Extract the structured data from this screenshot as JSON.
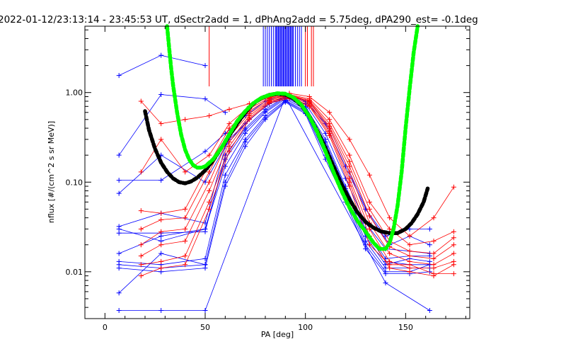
{
  "chart_data": {
    "type": "line",
    "title": "2022-01-12/23:13:14 - 23:45:53 UT, dSectr2add = 1, dPhAng2add = 5.75deg, dPA290_est=  -0.1deg",
    "xlabel": "PA [deg]",
    "ylabel": "nflux [#/(cm^2 s sr MeV)]",
    "xlim": [
      -10,
      182
    ],
    "ylim": [
      0.003,
      5.5
    ],
    "yscale": "log",
    "x_ticks": [
      0,
      50,
      100,
      150
    ],
    "x_tick_labels": [
      "0",
      "50",
      "100",
      "150"
    ],
    "y_ticks": [
      0.01,
      0.1,
      1.0
    ],
    "y_tick_labels": [
      "0.01",
      "0.10",
      "1.00"
    ],
    "grid": false,
    "colors": {
      "measured_sector_a": "#ff0000",
      "measured_sector_b": "#0000ff",
      "fit_black": "#000000",
      "fit_green": "#00ff00",
      "axes": "#000000"
    },
    "vertical_markers": [
      {
        "color": "#0000ff",
        "x": [
          79,
          80,
          81,
          82,
          83,
          84,
          85,
          85.5,
          86,
          86.5,
          87,
          87.5,
          88,
          88.5,
          89,
          89.5,
          90,
          90.5,
          91,
          91.5,
          92,
          92.5,
          93,
          93.5,
          94,
          95,
          96,
          97,
          98
        ]
      },
      {
        "color": "#ff0000",
        "x": [
          52,
          100,
          101,
          103,
          104
        ]
      }
    ],
    "series": [
      {
        "color": "#000000",
        "style": "fit",
        "x": [
          20,
          22,
          25,
          28,
          31,
          34,
          37,
          40,
          43,
          46,
          50,
          54,
          58,
          62,
          66,
          70,
          74,
          78,
          82,
          86,
          90,
          94,
          98,
          102,
          106,
          110,
          114,
          118,
          122,
          126,
          130,
          134,
          138,
          142,
          146,
          150,
          153,
          156,
          159,
          161
        ],
        "y": [
          0.62,
          0.38,
          0.235,
          0.165,
          0.13,
          0.11,
          0.1,
          0.097,
          0.102,
          0.112,
          0.135,
          0.175,
          0.24,
          0.33,
          0.45,
          0.6,
          0.75,
          0.87,
          0.94,
          0.97,
          0.95,
          0.86,
          0.72,
          0.54,
          0.37,
          0.24,
          0.15,
          0.095,
          0.064,
          0.046,
          0.036,
          0.031,
          0.028,
          0.027,
          0.027,
          0.03,
          0.035,
          0.044,
          0.06,
          0.085
        ]
      },
      {
        "color": "#00ff00",
        "style": "fit",
        "x": [
          31,
          32,
          33,
          34,
          36,
          38,
          40,
          42,
          44,
          46,
          48,
          50,
          54,
          58,
          62,
          66,
          70,
          74,
          78,
          82,
          86,
          90,
          94,
          98,
          102,
          106,
          110,
          114,
          118,
          122,
          126,
          130,
          134,
          137,
          140,
          142,
          144,
          146,
          148,
          150,
          152,
          154,
          156
        ],
        "y": [
          5.5,
          3.2,
          1.9,
          1.2,
          0.6,
          0.34,
          0.23,
          0.18,
          0.155,
          0.145,
          0.145,
          0.15,
          0.18,
          0.24,
          0.34,
          0.48,
          0.62,
          0.76,
          0.87,
          0.94,
          0.98,
          0.97,
          0.88,
          0.73,
          0.54,
          0.36,
          0.22,
          0.13,
          0.08,
          0.052,
          0.037,
          0.028,
          0.021,
          0.018,
          0.018,
          0.021,
          0.03,
          0.055,
          0.13,
          0.4,
          1.1,
          2.8,
          5.5
        ]
      },
      {
        "color": "#0000ff",
        "style": "measured",
        "x": [
          7,
          28,
          50
        ],
        "y": [
          1.55,
          2.6,
          2.0
        ]
      },
      {
        "color": "#0000ff",
        "style": "measured",
        "x": [
          7,
          28,
          50,
          60
        ],
        "y": [
          0.2,
          0.95,
          0.85,
          0.6
        ]
      },
      {
        "color": "#0000ff",
        "style": "measured",
        "x": [
          7,
          28,
          50,
          60,
          70,
          80,
          90,
          100,
          110,
          120,
          130,
          140,
          152,
          162
        ],
        "y": [
          0.105,
          0.105,
          0.22,
          0.35,
          0.55,
          0.8,
          0.95,
          0.8,
          0.45,
          0.15,
          0.05,
          0.025,
          0.03,
          0.03
        ]
      },
      {
        "color": "#0000ff",
        "style": "measured",
        "x": [
          7,
          28,
          50,
          62,
          72,
          82,
          92,
          102,
          112,
          122,
          132,
          142,
          152,
          162
        ],
        "y": [
          0.075,
          0.2,
          0.1,
          0.3,
          0.5,
          0.75,
          0.93,
          0.78,
          0.4,
          0.13,
          0.042,
          0.02,
          0.025,
          0.02
        ]
      },
      {
        "color": "#0000ff",
        "style": "measured",
        "x": [
          7,
          28,
          50,
          60,
          70,
          80,
          90,
          100,
          110,
          120,
          130,
          140,
          152,
          162
        ],
        "y": [
          0.032,
          0.045,
          0.035,
          0.25,
          0.45,
          0.7,
          0.92,
          0.75,
          0.35,
          0.11,
          0.035,
          0.018,
          0.017,
          0.016
        ]
      },
      {
        "color": "#0000ff",
        "style": "measured",
        "x": [
          7,
          28,
          50,
          60,
          70,
          80,
          90,
          100,
          110,
          120,
          130,
          140,
          152,
          162
        ],
        "y": [
          0.027,
          0.027,
          0.028,
          0.2,
          0.4,
          0.65,
          0.9,
          0.7,
          0.3,
          0.09,
          0.03,
          0.014,
          0.015,
          0.015
        ]
      },
      {
        "color": "#0000ff",
        "style": "measured",
        "x": [
          7,
          28,
          50,
          60,
          70,
          80,
          90,
          100,
          110,
          120,
          130,
          140,
          152,
          162
        ],
        "y": [
          0.03,
          0.022,
          0.03,
          0.18,
          0.38,
          0.62,
          0.88,
          0.68,
          0.28,
          0.085,
          0.028,
          0.013,
          0.012,
          0.012
        ]
      },
      {
        "color": "#0000ff",
        "style": "measured",
        "x": [
          7,
          28,
          50,
          60,
          70,
          80,
          90,
          100,
          110,
          120,
          130,
          140,
          152,
          162
        ],
        "y": [
          0.016,
          0.025,
          0.03,
          0.15,
          0.35,
          0.6,
          0.85,
          0.65,
          0.25,
          0.08,
          0.025,
          0.012,
          0.014,
          0.013
        ]
      },
      {
        "color": "#0000ff",
        "style": "measured",
        "x": [
          7,
          28,
          50,
          60,
          70,
          80,
          90,
          100,
          110,
          120,
          130,
          140,
          152,
          162
        ],
        "y": [
          0.013,
          0.012,
          0.014,
          0.12,
          0.3,
          0.55,
          0.82,
          0.62,
          0.22,
          0.07,
          0.022,
          0.011,
          0.011,
          0.011
        ]
      },
      {
        "color": "#0000ff",
        "style": "measured",
        "x": [
          7,
          28,
          50,
          60,
          70,
          80,
          90,
          100,
          110,
          120,
          130,
          140,
          152,
          162
        ],
        "y": [
          0.012,
          0.011,
          0.012,
          0.1,
          0.28,
          0.52,
          0.8,
          0.6,
          0.2,
          0.065,
          0.02,
          0.01,
          0.01,
          0.012
        ]
      },
      {
        "color": "#0000ff",
        "style": "measured",
        "x": [
          7,
          28,
          50,
          60,
          70,
          80,
          90,
          100,
          110,
          120,
          130,
          140,
          152,
          162
        ],
        "y": [
          0.011,
          0.01,
          0.011,
          0.09,
          0.25,
          0.5,
          0.78,
          0.58,
          0.18,
          0.06,
          0.018,
          0.0095,
          0.0095,
          0.01
        ]
      },
      {
        "color": "#0000ff",
        "style": "measured",
        "x": [
          7,
          28,
          50
        ],
        "y": [
          0.0058,
          0.016,
          0.012
        ]
      },
      {
        "color": "#0000ff",
        "style": "measured",
        "x": [
          7,
          28,
          50,
          90,
          140,
          162
        ],
        "y": [
          0.0037,
          0.0037,
          0.0037,
          0.9,
          0.0075,
          0.0037
        ]
      },
      {
        "color": "#ff0000",
        "style": "measured",
        "x": [
          18,
          28,
          40,
          52,
          62,
          72,
          82,
          92,
          102,
          112,
          122,
          132,
          142,
          152,
          164,
          174
        ],
        "y": [
          0.8,
          0.45,
          0.5,
          0.55,
          0.65,
          0.75,
          0.88,
          0.98,
          0.9,
          0.6,
          0.3,
          0.12,
          0.04,
          0.025,
          0.04,
          0.088
        ]
      },
      {
        "color": "#ff0000",
        "style": "measured",
        "x": [
          18,
          28,
          40,
          52,
          62,
          72,
          82,
          92,
          102,
          112,
          122,
          132,
          142,
          152,
          164,
          174
        ],
        "y": [
          0.13,
          0.3,
          0.13,
          0.2,
          0.45,
          0.7,
          0.9,
          0.95,
          0.85,
          0.5,
          0.2,
          0.06,
          0.03,
          0.02,
          0.022,
          0.028
        ]
      },
      {
        "color": "#ff0000",
        "style": "measured",
        "x": [
          18,
          28,
          40,
          52,
          62,
          72,
          82,
          92,
          102,
          112,
          122,
          132,
          142,
          152,
          164,
          174
        ],
        "y": [
          0.048,
          0.045,
          0.05,
          0.16,
          0.4,
          0.66,
          0.87,
          0.94,
          0.82,
          0.45,
          0.17,
          0.05,
          0.022,
          0.017,
          0.016,
          0.024
        ]
      },
      {
        "color": "#ff0000",
        "style": "measured",
        "x": [
          18,
          28,
          40,
          52,
          62,
          72,
          82,
          92,
          102,
          112,
          122,
          132,
          142,
          152,
          164,
          174
        ],
        "y": [
          0.03,
          0.038,
          0.04,
          0.13,
          0.36,
          0.62,
          0.85,
          0.93,
          0.8,
          0.42,
          0.15,
          0.042,
          0.019,
          0.015,
          0.014,
          0.02
        ]
      },
      {
        "color": "#ff0000",
        "style": "measured",
        "x": [
          18,
          28,
          40,
          52,
          62,
          72,
          82,
          92,
          102,
          112,
          122,
          132,
          142,
          152,
          164,
          174
        ],
        "y": [
          0.02,
          0.028,
          0.03,
          0.1,
          0.32,
          0.58,
          0.82,
          0.92,
          0.78,
          0.4,
          0.13,
          0.035,
          0.016,
          0.013,
          0.012,
          0.016
        ]
      },
      {
        "color": "#ff0000",
        "style": "measured",
        "x": [
          18,
          28,
          40,
          52,
          62,
          72,
          82,
          92,
          102,
          112,
          122,
          132,
          142,
          152,
          164,
          174
        ],
        "y": [
          0.015,
          0.02,
          0.022,
          0.08,
          0.28,
          0.55,
          0.8,
          0.9,
          0.75,
          0.37,
          0.11,
          0.03,
          0.013,
          0.011,
          0.011,
          0.013
        ]
      },
      {
        "color": "#ff0000",
        "style": "measured",
        "x": [
          18,
          28,
          40,
          52,
          62,
          72,
          82,
          92,
          102,
          112,
          122,
          132,
          142,
          152,
          164,
          174
        ],
        "y": [
          0.012,
          0.013,
          0.015,
          0.06,
          0.25,
          0.52,
          0.78,
          0.88,
          0.72,
          0.35,
          0.1,
          0.025,
          0.011,
          0.01,
          0.009,
          0.012
        ]
      },
      {
        "color": "#ff0000",
        "style": "measured",
        "x": [
          18,
          28,
          40,
          52,
          62,
          72,
          82,
          92,
          102,
          112,
          122,
          132,
          142,
          152,
          164,
          174
        ],
        "y": [
          0.009,
          0.011,
          0.012,
          0.05,
          0.22,
          0.5,
          0.76,
          0.86,
          0.7,
          0.33,
          0.09,
          0.02,
          0.012,
          0.012,
          0.0095,
          0.0095
        ]
      }
    ]
  }
}
